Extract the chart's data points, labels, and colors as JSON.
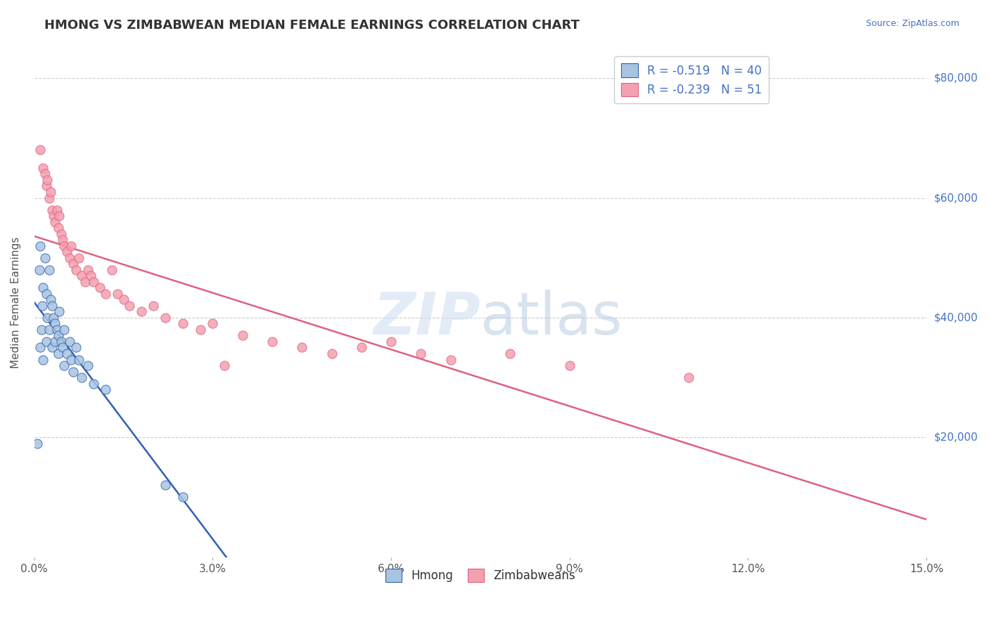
{
  "title": "HMONG VS ZIMBABWEAN MEDIAN FEMALE EARNINGS CORRELATION CHART",
  "source": "Source: ZipAtlas.com",
  "ylabel": "Median Female Earnings",
  "ytick_labels": [
    "$20,000",
    "$40,000",
    "$60,000",
    "$80,000"
  ],
  "ytick_values": [
    20000,
    40000,
    60000,
    80000
  ],
  "xmin": 0.0,
  "xmax": 15.0,
  "ymin": 0,
  "ymax": 85000,
  "hmong_color": "#a8c4e0",
  "zimbabwean_color": "#f4a0b0",
  "hmong_line_color": "#3060b0",
  "zimbabwean_line_color": "#e06080",
  "legend_r1": "-0.519",
  "legend_n1": "40",
  "legend_r2": "-0.239",
  "legend_n2": "51",
  "hmong_x": [
    0.05,
    0.08,
    0.1,
    0.1,
    0.12,
    0.13,
    0.15,
    0.15,
    0.18,
    0.2,
    0.2,
    0.22,
    0.25,
    0.25,
    0.28,
    0.3,
    0.3,
    0.32,
    0.35,
    0.35,
    0.38,
    0.4,
    0.4,
    0.42,
    0.45,
    0.48,
    0.5,
    0.5,
    0.55,
    0.6,
    0.62,
    0.65,
    0.7,
    0.75,
    0.8,
    0.9,
    1.0,
    1.2,
    2.2,
    2.5
  ],
  "hmong_y": [
    19000,
    48000,
    52000,
    35000,
    38000,
    42000,
    45000,
    33000,
    50000,
    44000,
    36000,
    40000,
    48000,
    38000,
    43000,
    42000,
    35000,
    40000,
    39000,
    36000,
    38000,
    37000,
    34000,
    41000,
    36000,
    35000,
    38000,
    32000,
    34000,
    36000,
    33000,
    31000,
    35000,
    33000,
    30000,
    32000,
    29000,
    28000,
    12000,
    10000
  ],
  "zimbabwean_x": [
    0.1,
    0.15,
    0.18,
    0.2,
    0.22,
    0.25,
    0.28,
    0.3,
    0.32,
    0.35,
    0.38,
    0.4,
    0.42,
    0.45,
    0.48,
    0.5,
    0.55,
    0.6,
    0.62,
    0.65,
    0.7,
    0.75,
    0.8,
    0.85,
    0.9,
    0.95,
    1.0,
    1.1,
    1.2,
    1.3,
    1.4,
    1.5,
    1.6,
    1.8,
    2.0,
    2.2,
    2.5,
    2.8,
    3.0,
    3.5,
    4.0,
    4.5,
    5.0,
    5.5,
    6.0,
    6.5,
    7.0,
    8.0,
    9.0,
    11.0,
    3.2
  ],
  "zimbabwean_y": [
    68000,
    65000,
    64000,
    62000,
    63000,
    60000,
    61000,
    58000,
    57000,
    56000,
    58000,
    55000,
    57000,
    54000,
    53000,
    52000,
    51000,
    50000,
    52000,
    49000,
    48000,
    50000,
    47000,
    46000,
    48000,
    47000,
    46000,
    45000,
    44000,
    48000,
    44000,
    43000,
    42000,
    41000,
    42000,
    40000,
    39000,
    38000,
    39000,
    37000,
    36000,
    35000,
    34000,
    35000,
    36000,
    34000,
    33000,
    34000,
    32000,
    30000,
    32000
  ],
  "background_color": "#ffffff",
  "grid_color": "#cccccc",
  "axis_label_color": "#4472c4",
  "title_color": "#333333",
  "xtick_positions": [
    0,
    3,
    6,
    9,
    12,
    15
  ],
  "xtick_labels": [
    "0.0%",
    "3.0%",
    "6.0%",
    "9.0%",
    "12.0%",
    "15.0%"
  ]
}
